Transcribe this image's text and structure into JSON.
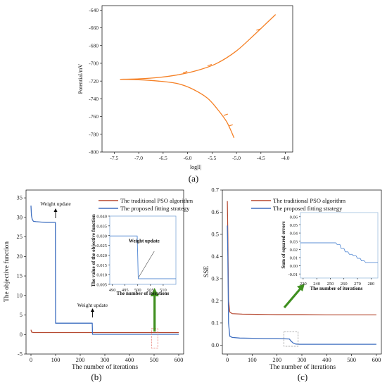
{
  "colors": {
    "orange": "#F58025",
    "red": "#B5472F",
    "blue": "#3F6FC0",
    "green": "#3F8F1F",
    "pink": "#E8837A",
    "gray": "#888888",
    "inset_line": "#5C8FD6"
  },
  "panel_labels": {
    "a": "(a)",
    "b": "(b)",
    "c": "(c)"
  },
  "chart_data": [
    {
      "type": "line",
      "xlabel": "log|I|",
      "ylabel": "Potential/mV",
      "xlim": [
        -7.75,
        -3.85
      ],
      "ylim": [
        -800,
        -635
      ],
      "xticks": [
        -7.5,
        -7.0,
        -6.5,
        -6.0,
        -5.5,
        -5.0,
        -4.5,
        -4.0
      ],
      "xtick_labels": [
        "-7.5",
        "-7.0",
        "-6.5",
        "-6.0",
        "-5.5",
        "-5.0",
        "-4.5",
        "-4.0"
      ],
      "yticks": [
        -800,
        -780,
        -760,
        -740,
        -720,
        -700,
        -680,
        -660,
        -640
      ],
      "ytick_labels": [
        "-800",
        "-780",
        "-760",
        "-740",
        "-720",
        "-700",
        "-680",
        "-660",
        "-640"
      ],
      "series": [
        {
          "branch": "anodic",
          "x": [
            -7.38,
            -7.0,
            -6.6,
            -6.2,
            -5.8,
            -5.4,
            -5.0,
            -4.6,
            -4.2
          ],
          "y": [
            -718,
            -717.5,
            -716,
            -713,
            -708,
            -700,
            -686,
            -666,
            -645
          ]
        },
        {
          "branch": "cathodic",
          "x": [
            -7.38,
            -7.0,
            -6.6,
            -6.2,
            -5.9,
            -5.6,
            -5.4,
            -5.2,
            -5.05
          ],
          "y": [
            -718,
            -718.5,
            -720,
            -723,
            -729,
            -739,
            -751,
            -766,
            -784
          ]
        }
      ],
      "grid": false
    },
    {
      "type": "line",
      "xlabel": "The number of iterations",
      "ylabel": "The objective function",
      "xlim": [
        -20,
        620
      ],
      "ylim": [
        -5,
        37
      ],
      "xticks": [
        0,
        100,
        200,
        300,
        400,
        500,
        600
      ],
      "xtick_labels": [
        "0",
        "100",
        "200",
        "300",
        "400",
        "500",
        "600"
      ],
      "yticks": [
        -5,
        0,
        5,
        10,
        15,
        20,
        25,
        30,
        35
      ],
      "ytick_labels": [
        "-5",
        "0",
        "5",
        "10",
        "15",
        "20",
        "25",
        "30",
        "35"
      ],
      "legend_position": "top-right",
      "series": [
        {
          "name": "The traditional PSO algorithm",
          "x": [
            0,
            3,
            10,
            100,
            250,
            600
          ],
          "y": [
            1.2,
            0.6,
            0.5,
            0.5,
            0.5,
            0.5
          ]
        },
        {
          "name": "The proposed fitting strategy",
          "x": [
            0,
            2,
            5,
            10,
            20,
            40,
            60,
            99,
            100,
            249,
            250,
            600
          ],
          "y": [
            33,
            30.5,
            29.5,
            29,
            28.9,
            28.8,
            28.7,
            28.7,
            2.9,
            2.9,
            0.05,
            0.05
          ]
        }
      ],
      "annotations": [
        "Weight update",
        "Weight update"
      ],
      "inset": {
        "xlabel": "The number of iterations",
        "ylabel": "The value of the objective function",
        "xlim": [
          489,
          515
        ],
        "ylim": [
          0.005,
          0.04
        ],
        "xticks": [
          490,
          495,
          500,
          505,
          510
        ],
        "xtick_labels": [
          "490",
          "495",
          "500",
          "505",
          "510"
        ],
        "yticks": [
          0.005,
          0.01,
          0.015,
          0.02,
          0.025,
          0.03,
          0.035,
          0.04
        ],
        "ytick_labels": [
          "0.005",
          "0.010",
          "0.015",
          "0.020",
          "0.025",
          "0.030",
          "0.035",
          "0.040"
        ],
        "annotation": "Weight update",
        "x": [
          489,
          499.8,
          500.2,
          515
        ],
        "y": [
          0.0298,
          0.0298,
          0.0079,
          0.0079
        ]
      }
    },
    {
      "type": "line",
      "xlabel": "The number of iterations",
      "ylabel": "SSE",
      "xlim": [
        -20,
        620
      ],
      "ylim": [
        -0.04,
        0.7
      ],
      "xticks": [
        0,
        100,
        200,
        300,
        400,
        500,
        600
      ],
      "xtick_labels": [
        "0",
        "100",
        "200",
        "300",
        "400",
        "500",
        "600"
      ],
      "yticks": [
        0.0,
        0.1,
        0.2,
        0.3,
        0.4,
        0.5,
        0.6,
        0.7
      ],
      "ytick_labels": [
        "0.0",
        "0.1",
        "0.2",
        "0.3",
        "0.4",
        "0.5",
        "0.6",
        "0.7"
      ],
      "legend_position": "top-right",
      "series": [
        {
          "name": "The traditional PSO algorithm",
          "x": [
            0,
            2,
            5,
            10,
            20,
            60,
            120,
            200,
            300,
            400,
            500,
            600
          ],
          "y": [
            0.65,
            0.5,
            0.2,
            0.15,
            0.142,
            0.14,
            0.139,
            0.138,
            0.138,
            0.137,
            0.137,
            0.137
          ]
        },
        {
          "name": "The proposed fitting strategy",
          "x": [
            0,
            2,
            5,
            10,
            20,
            50,
            100,
            150,
            200,
            250,
            255,
            265,
            275,
            290,
            400,
            600
          ],
          "y": [
            0.54,
            0.4,
            0.1,
            0.04,
            0.035,
            0.032,
            0.031,
            0.03,
            0.03,
            0.028,
            0.02,
            0.01,
            0.005,
            0.004,
            0.004,
            0.004
          ]
        }
      ],
      "inset": {
        "xlabel": "The number of iterations",
        "ylabel": "Sum of squared errors",
        "xlim": [
          228,
          285
        ],
        "ylim": [
          -0.015,
          0.065
        ],
        "xticks": [
          230,
          240,
          250,
          260,
          270,
          280
        ],
        "xtick_labels": [
          "230",
          "240",
          "250",
          "260",
          "270",
          "280"
        ],
        "yticks": [
          -0.01,
          0.0,
          0.01,
          0.02,
          0.03,
          0.04,
          0.05,
          0.06
        ],
        "ytick_labels": [
          "-0.01",
          "0.00",
          "0.01",
          "0.02",
          "0.03",
          "0.04",
          "0.05",
          "0.06"
        ],
        "x": [
          228,
          254,
          255,
          257,
          258,
          260,
          261,
          263,
          264,
          266,
          267,
          269,
          270,
          272,
          273,
          275,
          276,
          285
        ],
        "y": [
          0.028,
          0.028,
          0.026,
          0.026,
          0.021,
          0.021,
          0.017,
          0.017,
          0.014,
          0.014,
          0.012,
          0.012,
          0.009,
          0.009,
          0.006,
          0.006,
          0.004,
          0.004
        ]
      }
    }
  ]
}
